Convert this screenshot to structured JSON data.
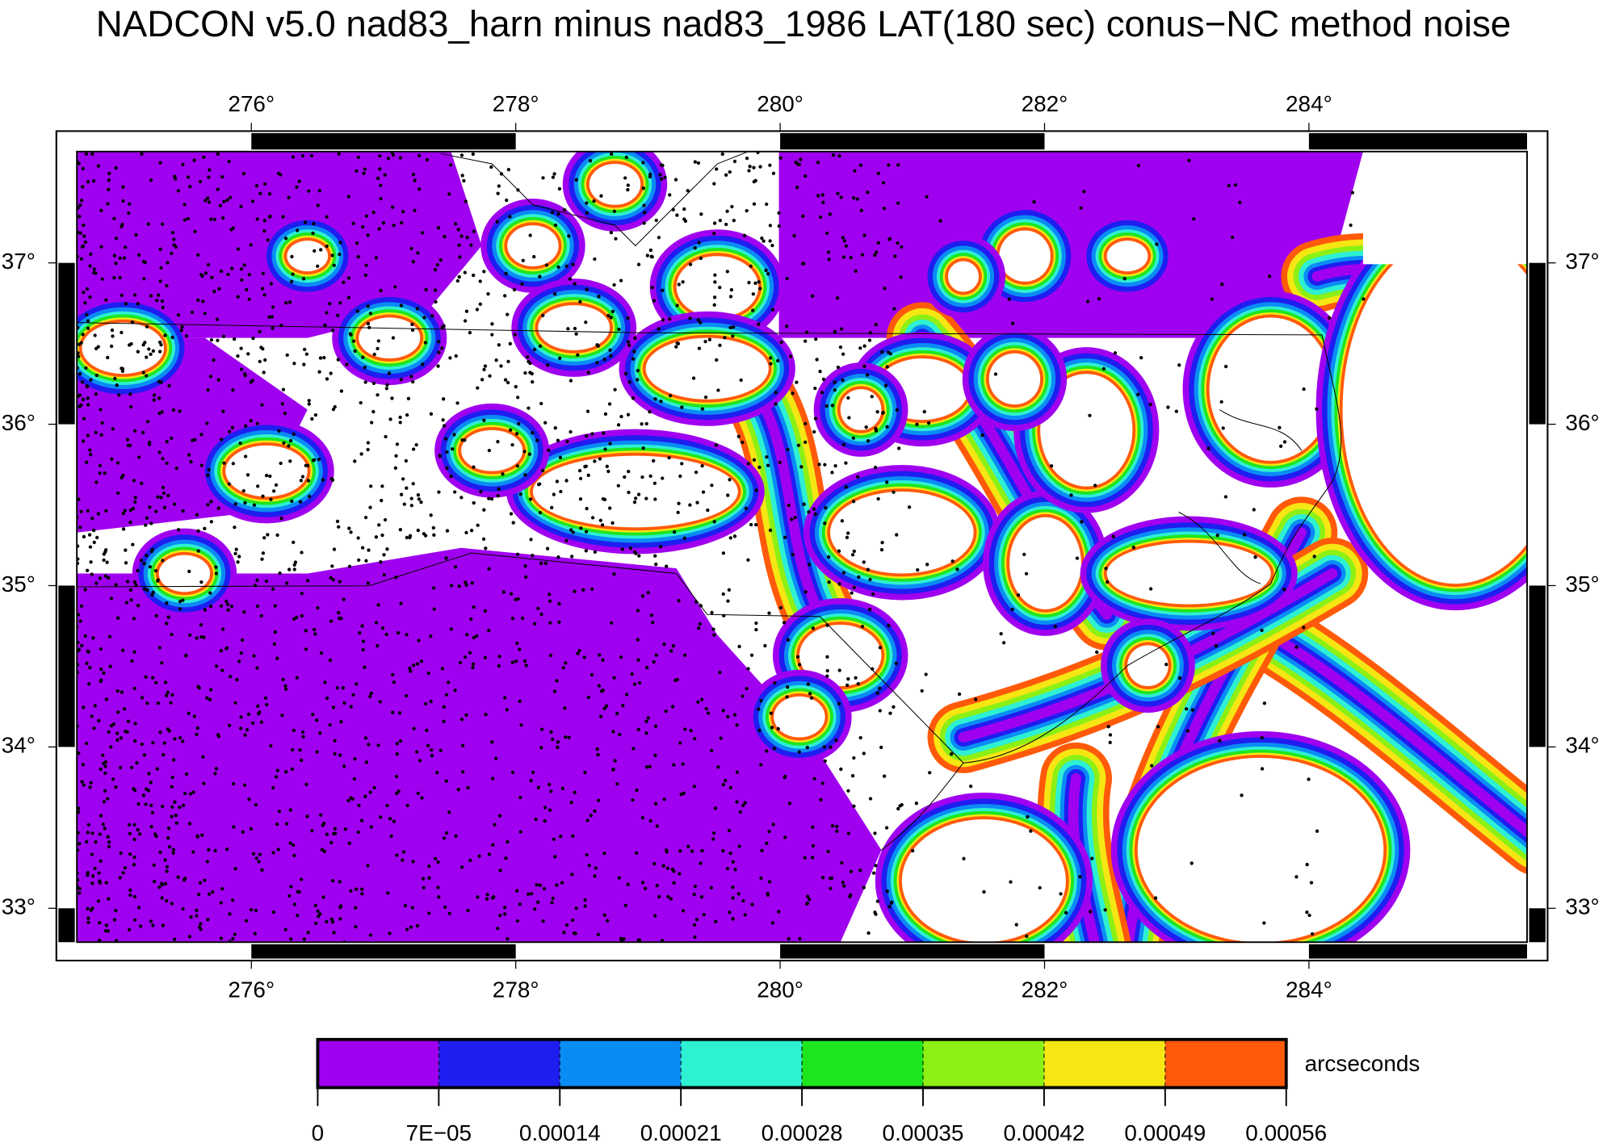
{
  "title": "NADCON v5.0 nad83_harn minus nad83_1986 LAT(180 sec) conus−NC method noise",
  "map": {
    "xlim": [
      274.68,
      285.65
    ],
    "ylim": [
      32.79,
      37.69
    ],
    "xticks": [
      {
        "value": 276,
        "label": "276°"
      },
      {
        "value": 278,
        "label": "278°"
      },
      {
        "value": 280,
        "label": "280°"
      },
      {
        "value": 282,
        "label": "282°"
      },
      {
        "value": 284,
        "label": "284°"
      }
    ],
    "yticks": [
      {
        "value": 33,
        "label": "33°"
      },
      {
        "value": 34,
        "label": "34°"
      },
      {
        "value": 35,
        "label": "35°"
      },
      {
        "value": 36,
        "label": "36°"
      },
      {
        "value": 37,
        "label": "37°"
      }
    ]
  },
  "colorbar": {
    "unit": "arcseconds",
    "ticks": [
      0,
      {
        "value": 7e-05,
        "label": "7E−05"
      },
      0.00014,
      0.00021,
      0.00028,
      0.00035,
      0.00042,
      0.00049,
      0.00056
    ],
    "colors": [
      "#a000f0",
      "#1e1ef0",
      "#0a8cf5",
      "#2ef0d2",
      "#1ee61e",
      "#8cf014",
      "#f5e614",
      "#ff5a0a"
    ]
  }
}
